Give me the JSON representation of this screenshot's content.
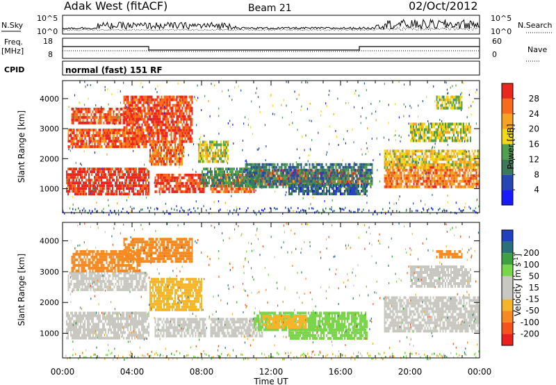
{
  "header": {
    "title": "Adak West (fitACF)",
    "beam": "Beam 21",
    "date": "02/Oct/2012"
  },
  "strips": {
    "nsky_label": "N.Sky",
    "nsearch_label": "N.Search",
    "nsky_ticks": [
      "10^5",
      "10^0"
    ],
    "nsearch_ticks": [
      "10^5",
      "10^0"
    ],
    "freq_label_top": "Freq.",
    "freq_label_bottom": "[MHz]",
    "freq_ticks": [
      "18",
      "8"
    ],
    "nave_label": "Nave",
    "nave_ticks": [
      "60",
      "0"
    ],
    "cpid_label": "CPID",
    "cpid_value": "normal (fast) 151 RF"
  },
  "colors": {
    "power": [
      "#1a1aff",
      "#2646b4",
      "#3a7a58",
      "#4fa04f",
      "#f3d818",
      "#f5a321",
      "#f76b1c",
      "#e8281e"
    ],
    "velocity": [
      "#e82020",
      "#f2541c",
      "#f58a22",
      "#f5b52a",
      "#c8c8c0",
      "#c8c8c0",
      "#79d64a",
      "#3ea040",
      "#2a6f7a",
      "#2040c0"
    ]
  },
  "chart_data": [
    {
      "type": "heatmap",
      "name": "power-panel",
      "ylabel": "Slant Range [km]",
      "y_ticks": [
        1000,
        2000,
        3000,
        4000
      ],
      "ylim": [
        200,
        4600
      ],
      "xlim": [
        0,
        24
      ],
      "colorbar": {
        "label": "Power [dB]",
        "ticks": [
          "4",
          "8",
          "12",
          "16",
          "20",
          "24",
          "28"
        ],
        "range": [
          0,
          32
        ]
      },
      "regions": [
        {
          "x0": 0.2,
          "x1": 5.0,
          "y0": 850,
          "y1": 1700,
          "value": 30
        },
        {
          "x0": 0.3,
          "x1": 4.8,
          "y0": 2400,
          "y1": 3000,
          "value": 27
        },
        {
          "x0": 0.5,
          "x1": 4.5,
          "y0": 3200,
          "y1": 3700,
          "value": 28
        },
        {
          "x0": 3.5,
          "x1": 7.5,
          "y0": 2600,
          "y1": 4100,
          "value": 28
        },
        {
          "x0": 5.0,
          "x1": 7.0,
          "y0": 1800,
          "y1": 2600,
          "value": 26
        },
        {
          "x0": 5.3,
          "x1": 8.2,
          "y0": 900,
          "y1": 1500,
          "value": 29
        },
        {
          "x0": 7.8,
          "x1": 9.5,
          "y0": 1900,
          "y1": 2600,
          "value": 18
        },
        {
          "x0": 8.5,
          "x1": 11.0,
          "y0": 900,
          "y1": 1500,
          "value": 27
        },
        {
          "x0": 8.0,
          "x1": 11.5,
          "y0": 1100,
          "y1": 1700,
          "value": 12
        },
        {
          "x0": 11.0,
          "x1": 17.5,
          "y0": 1150,
          "y1": 1650,
          "value": 28
        },
        {
          "x0": 10.5,
          "x1": 17.8,
          "y0": 1050,
          "y1": 1850,
          "value": 10
        },
        {
          "x0": 13.0,
          "x1": 17.5,
          "y0": 850,
          "y1": 1150,
          "value": 8
        },
        {
          "x0": 18.5,
          "x1": 24.0,
          "y0": 1050,
          "y1": 1850,
          "value": 25
        },
        {
          "x0": 18.5,
          "x1": 24.0,
          "y0": 1700,
          "y1": 2300,
          "value": 19
        },
        {
          "x0": 20.0,
          "x1": 23.5,
          "y0": 2600,
          "y1": 3200,
          "value": 17
        },
        {
          "x0": 21.5,
          "x1": 23.0,
          "y0": 3700,
          "y1": 4100,
          "value": 16
        }
      ]
    },
    {
      "type": "heatmap",
      "name": "velocity-panel",
      "ylabel": "Slant Range [km]",
      "y_ticks": [
        1000,
        2000,
        3000,
        4000
      ],
      "ylim": [
        200,
        4600
      ],
      "xlim": [
        0,
        24
      ],
      "xlabel": "Time UT",
      "x_ticks": [
        "00:00",
        "04:00",
        "08:00",
        "12:00",
        "16:00",
        "20:00",
        "00:00"
      ],
      "colorbar": {
        "label": "Velocity [m s^-1]",
        "ticks": [
          "-200",
          "-100",
          "-50",
          "-15",
          "15",
          "50",
          "100",
          "200"
        ],
        "range": [
          -250,
          250
        ]
      },
      "regions": [
        {
          "x0": 0.2,
          "x1": 5.0,
          "y0": 850,
          "y1": 1700,
          "value": 0
        },
        {
          "x0": 0.3,
          "x1": 4.8,
          "y0": 2400,
          "y1": 3000,
          "value": 0
        },
        {
          "x0": 0.5,
          "x1": 4.5,
          "y0": 3000,
          "y1": 3700,
          "value": -60
        },
        {
          "x0": 3.5,
          "x1": 7.5,
          "y0": 3300,
          "y1": 4100,
          "value": -90
        },
        {
          "x0": 5.0,
          "x1": 8.0,
          "y0": 1800,
          "y1": 2800,
          "value": -40
        },
        {
          "x0": 5.3,
          "x1": 8.2,
          "y0": 900,
          "y1": 1500,
          "value": 0
        },
        {
          "x0": 8.5,
          "x1": 11.5,
          "y0": 900,
          "y1": 1500,
          "value": 0
        },
        {
          "x0": 11.0,
          "x1": 17.5,
          "y0": 1100,
          "y1": 1700,
          "value": 35
        },
        {
          "x0": 11.5,
          "x1": 14.0,
          "y0": 1200,
          "y1": 1600,
          "value": -40
        },
        {
          "x0": 13.0,
          "x1": 17.5,
          "y0": 800,
          "y1": 1150,
          "value": 30
        },
        {
          "x0": 18.5,
          "x1": 24.0,
          "y0": 1050,
          "y1": 2200,
          "value": 0
        },
        {
          "x0": 20.0,
          "x1": 23.5,
          "y0": 2500,
          "y1": 3200,
          "value": 0
        },
        {
          "x0": 21.5,
          "x1": 23.0,
          "y0": 3500,
          "y1": 3700,
          "value": -80
        }
      ]
    }
  ]
}
